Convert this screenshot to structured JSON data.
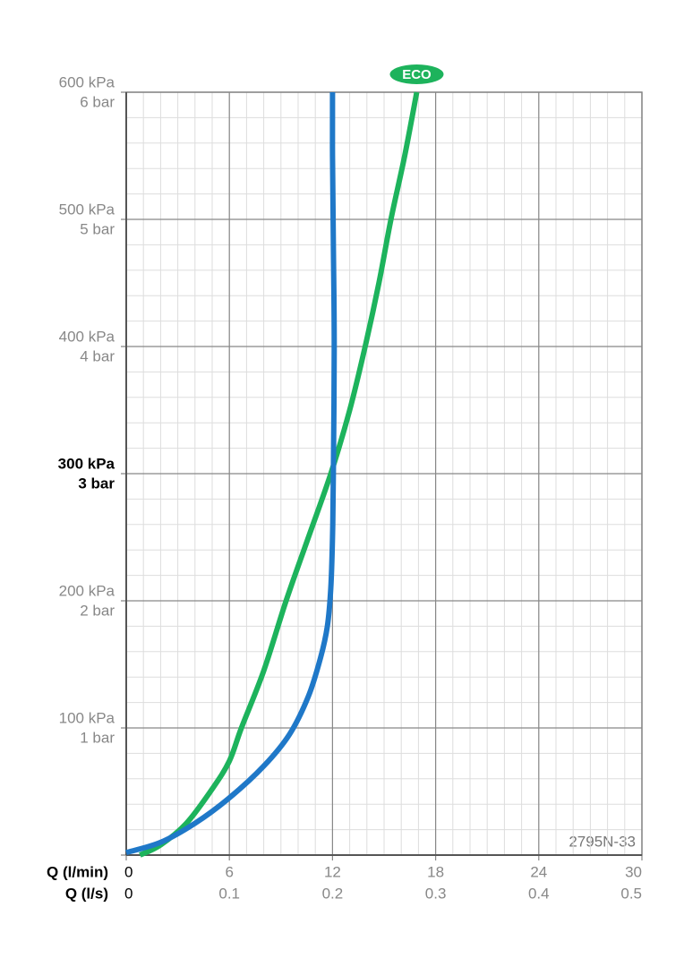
{
  "chart_data": {
    "type": "line",
    "xlabel": "Q (l/min)",
    "x2label": "Q (l/s)",
    "xlim": [
      0,
      30
    ],
    "xticks": [
      0,
      6,
      12,
      18,
      24,
      30
    ],
    "x2lim": [
      0,
      0.5
    ],
    "x2ticks": [
      0,
      0.1,
      0.2,
      0.3,
      0.4,
      0.5
    ],
    "ylim": [
      0,
      600
    ],
    "yticks": [
      0,
      {
        "value": 100,
        "label": "100 kPa"
      },
      {
        "value": 200,
        "label": "200 kPa"
      },
      {
        "value": 300,
        "label": "300 kPa"
      },
      {
        "value": 400,
        "label": "400 kPa"
      },
      {
        "value": 500,
        "label": "500 kPa"
      },
      {
        "value": 600,
        "label": "600 kPa"
      }
    ],
    "ytick_sublabels": [
      null,
      "1 bar",
      "2 bar",
      "3 bar",
      "4 bar",
      "5 bar",
      "6 bar"
    ],
    "bold_ytick_index": 3,
    "grid": true,
    "x_minor_step": 1,
    "y_minor_step": 20,
    "annotation": "2795N-33",
    "series": [
      {
        "name": "ECO",
        "color": "#1db35c",
        "x": [
          0.8,
          2,
          3.5,
          5,
          6,
          6.7,
          8,
          9.3,
          10.6,
          11.9,
          13,
          13.9,
          14.7,
          15.4,
          16.2,
          16.9
        ],
        "values": [
          0,
          8,
          25,
          52,
          74,
          100,
          145,
          200,
          250,
          300,
          350,
          400,
          450,
          500,
          550,
          600
        ]
      },
      {
        "color": "#1f78c8",
        "x": [
          0,
          2,
          4,
          6,
          8,
          9.5,
          10.6,
          11.3,
          11.7,
          11.9,
          12,
          12.05,
          12.1,
          12.05,
          12,
          12
        ],
        "values": [
          2,
          10,
          25,
          45,
          70,
          95,
          125,
          155,
          180,
          210,
          250,
          300,
          400,
          480,
          550,
          600
        ]
      }
    ]
  }
}
